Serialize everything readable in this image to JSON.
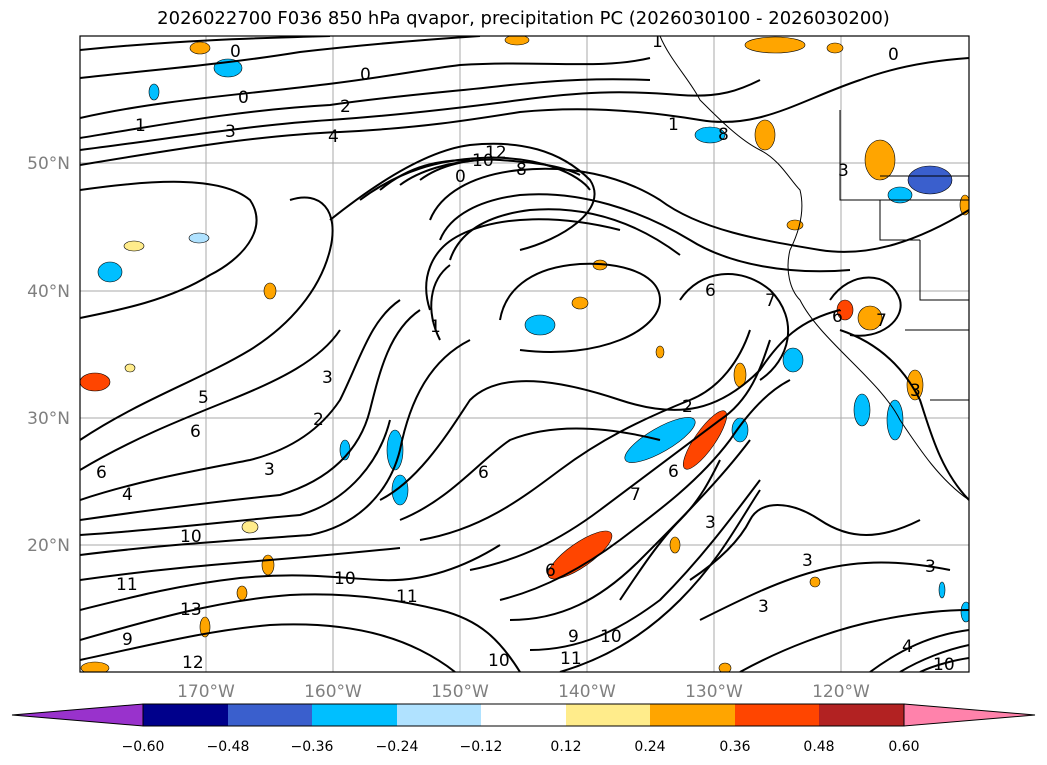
{
  "title": "2026022700 F036 850 hPa qvapor, precipitation PC (2026030100 - 2026030200)",
  "lat_labels": [
    "50°N",
    "40°N",
    "30°N",
    "20°N"
  ],
  "lon_labels": [
    "170°W",
    "160°W",
    "150°W",
    "140°W",
    "130°W",
    "120°W"
  ],
  "contour_labels": [
    "0",
    "0",
    "0",
    "0",
    "1",
    "1",
    "2",
    "3",
    "4",
    "10",
    "12",
    "8",
    "0",
    "1",
    "6",
    "7",
    "6",
    "3",
    "5",
    "6",
    "6",
    "4",
    "2",
    "3",
    "3",
    "10",
    "11",
    "13",
    "12",
    "9",
    "10",
    "11",
    "6",
    "10",
    "11",
    "10",
    "9",
    "7",
    "3",
    "2",
    "6",
    "3",
    "3",
    "6",
    "3",
    "10",
    "3",
    "4",
    "1",
    "7",
    "8"
  ],
  "colorbar": {
    "ticks": [
      "−0.60",
      "−0.48",
      "−0.36",
      "−0.24",
      "−0.12",
      "0.12",
      "0.24",
      "0.36",
      "0.48",
      "0.60"
    ],
    "colors": [
      "#9932cc",
      "#00008b",
      "#3a5fcd",
      "#00bfff",
      "#b0e2ff",
      "#ffffff",
      "#ffec8b",
      "#ffa500",
      "#ff4500",
      "#b22222",
      "#ff82ab"
    ]
  }
}
